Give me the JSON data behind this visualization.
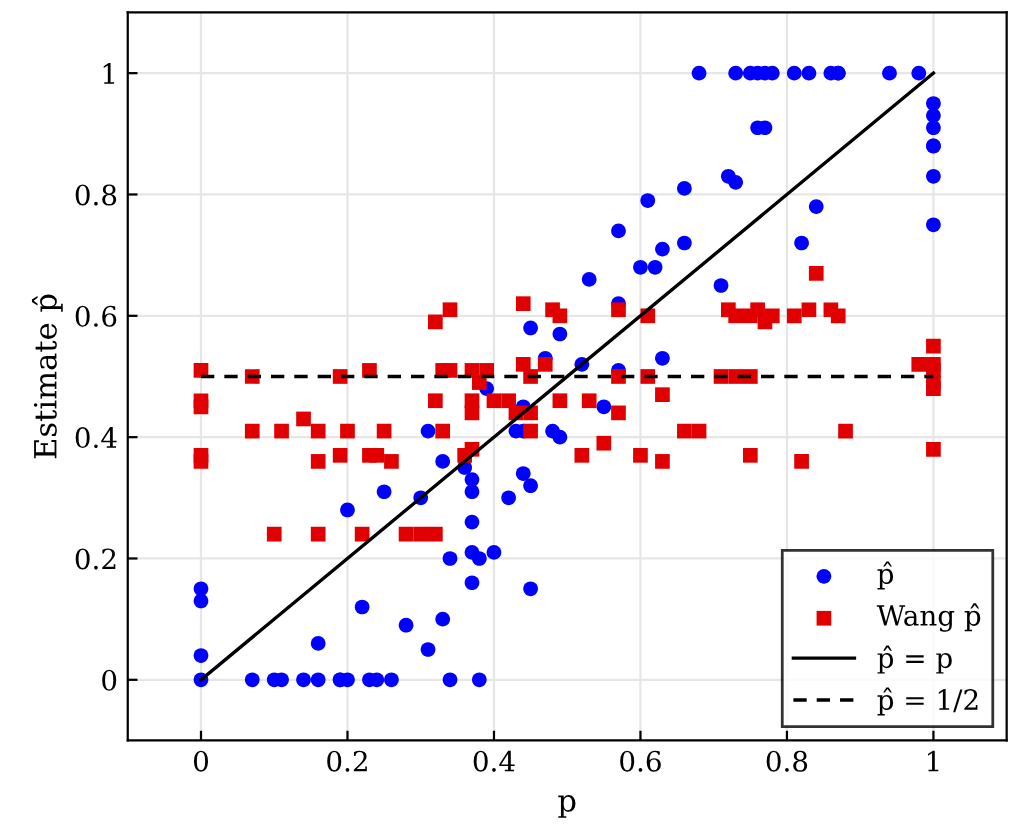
{
  "chart_data": {
    "type": "scatter",
    "xlabel": "p",
    "ylabel": "Estimate p̂",
    "xlim": [
      -0.1,
      1.1
    ],
    "ylim": [
      -0.1,
      1.1
    ],
    "xticks": [
      0,
      0.2,
      0.4,
      0.6,
      0.8,
      1
    ],
    "yticks": [
      0,
      0.2,
      0.4,
      0.6,
      0.8,
      1
    ],
    "grid": true,
    "legend": "bottom right",
    "series": [
      {
        "name": "p̂",
        "color": "#0000ff",
        "marker": "circle",
        "x": [
          0.68,
          0.73,
          0.75,
          0.76,
          0.77,
          0.78,
          0.81,
          0.83,
          0.86,
          0.87,
          0.87,
          0.94,
          0.98,
          1,
          1,
          1,
          1,
          1,
          1,
          1,
          0.76,
          0.77,
          0.72,
          0.73,
          0.66,
          0.61,
          0.84,
          0.57,
          0.63,
          0.66,
          0.82,
          0.6,
          0.62,
          0.53,
          0.71,
          0.57,
          0.45,
          0.49,
          0.47,
          0.52,
          0.57,
          0.63,
          0.39,
          0.44,
          0.43,
          0.44,
          0.48,
          0.49,
          0.31,
          0.33,
          0.36,
          0.37,
          0.37,
          0.37,
          0.3,
          0.25,
          0.42,
          0.44,
          0.45,
          0.55,
          0.2,
          0.37,
          0.38,
          0.4,
          0.34,
          0.37,
          0.45,
          0.22,
          0.28,
          0.33,
          0.31,
          0.16,
          0,
          0,
          0,
          0,
          0.07,
          0.1,
          0.11,
          0.14,
          0.16,
          0.19,
          0.19,
          0.2,
          0.23,
          0.24,
          0.26,
          0.34,
          0.38
        ],
        "values": [
          1,
          1,
          1,
          1,
          1,
          1,
          1,
          1,
          1,
          1,
          1,
          1,
          1,
          0.95,
          0.93,
          0.91,
          0.88,
          0.88,
          0.83,
          0.75,
          0.91,
          0.91,
          0.83,
          0.82,
          0.81,
          0.79,
          0.78,
          0.74,
          0.71,
          0.72,
          0.72,
          0.68,
          0.68,
          0.66,
          0.65,
          0.62,
          0.58,
          0.57,
          0.53,
          0.52,
          0.51,
          0.53,
          0.48,
          0.45,
          0.41,
          0.41,
          0.41,
          0.4,
          0.41,
          0.36,
          0.35,
          0.33,
          0.31,
          0.26,
          0.3,
          0.31,
          0.3,
          0.34,
          0.32,
          0.45,
          0.28,
          0.21,
          0.2,
          0.21,
          0.2,
          0.16,
          0.15,
          0.12,
          0.09,
          0.1,
          0.05,
          0.06,
          0.15,
          0.13,
          0.04,
          0,
          0,
          0,
          0,
          0,
          0,
          0,
          0,
          0,
          0,
          0,
          0,
          0,
          0
        ]
      },
      {
        "name": "Wang p̂",
        "color": "#e00000",
        "marker": "square",
        "x": [
          0,
          0.07,
          0.19,
          0.23,
          0.32,
          0.34,
          0.33,
          0.34,
          0.37,
          0.39,
          0.38,
          0.44,
          0.45,
          0.47,
          0.44,
          0.48,
          0.49,
          0.57,
          0.61,
          0.72,
          0.73,
          0.75,
          0.76,
          0.77,
          0.78,
          0.81,
          0.83,
          0.86,
          0.87,
          0.84,
          1,
          1,
          1,
          1,
          1,
          0.98,
          0.57,
          0.61,
          0.71,
          0.73,
          0.75,
          0.63,
          0,
          0,
          0,
          0,
          0.07,
          0.11,
          0.14,
          0.16,
          0.16,
          0.19,
          0.2,
          0.23,
          0.24,
          0.25,
          0.26,
          0.32,
          0.33,
          0.36,
          0.37,
          0.37,
          0.37,
          0.4,
          0.42,
          0.43,
          0.45,
          0.45,
          0.49,
          0.53,
          0.57,
          0.52,
          0.55,
          0.6,
          0.63,
          0.66,
          0.68,
          0.75,
          0.82,
          0.88,
          1,
          0.1,
          0.16,
          0.22,
          0.28,
          0.3,
          0.32
        ],
        "values": [
          0.51,
          0.5,
          0.5,
          0.51,
          0.59,
          0.61,
          0.51,
          0.51,
          0.51,
          0.51,
          0.49,
          0.52,
          0.5,
          0.52,
          0.62,
          0.61,
          0.6,
          0.61,
          0.6,
          0.61,
          0.6,
          0.6,
          0.61,
          0.59,
          0.6,
          0.6,
          0.61,
          0.61,
          0.6,
          0.67,
          0.55,
          0.52,
          0.51,
          0.49,
          0.48,
          0.52,
          0.5,
          0.5,
          0.5,
          0.5,
          0.5,
          0.47,
          0.46,
          0.45,
          0.37,
          0.36,
          0.41,
          0.41,
          0.43,
          0.41,
          0.36,
          0.37,
          0.41,
          0.37,
          0.37,
          0.41,
          0.36,
          0.46,
          0.41,
          0.37,
          0.38,
          0.46,
          0.44,
          0.46,
          0.46,
          0.44,
          0.44,
          0.41,
          0.46,
          0.46,
          0.44,
          0.37,
          0.39,
          0.37,
          0.36,
          0.41,
          0.41,
          0.37,
          0.36,
          0.41,
          0.38,
          0.24,
          0.24,
          0.24,
          0.24,
          0.24,
          0.24
        ]
      },
      {
        "name": "p̂ = p",
        "color": "#000000",
        "type": "line",
        "marker": "none",
        "line_style": "solid",
        "x": [
          0,
          1
        ],
        "values": [
          0,
          1
        ]
      },
      {
        "name": "p̂ = 1/2",
        "color": "#000000",
        "type": "line",
        "marker": "none",
        "line_style": "dashed",
        "x": [
          0,
          1
        ],
        "values": [
          0.5,
          0.5
        ]
      }
    ]
  }
}
